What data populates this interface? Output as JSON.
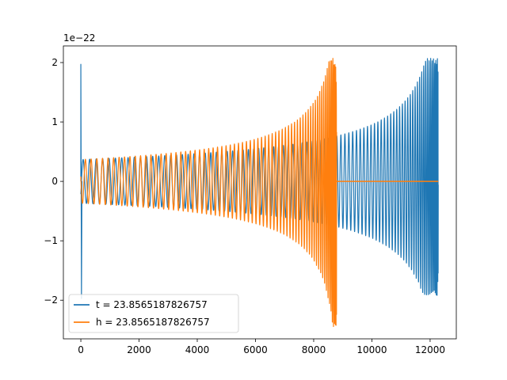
{
  "chart_data": {
    "type": "line",
    "title": "",
    "xlabel": "",
    "ylabel": "",
    "y_offset_label": "1e−22",
    "xlim": [
      -600,
      12900
    ],
    "ylim": [
      -2.65,
      2.28
    ],
    "x_ticks": [
      0,
      2000,
      4000,
      6000,
      8000,
      10000,
      12000
    ],
    "x_tick_labels": [
      "0",
      "2000",
      "4000",
      "6000",
      "8000",
      "10000",
      "12000"
    ],
    "y_ticks": [
      -2,
      -1,
      0,
      1,
      2
    ],
    "y_tick_labels": [
      "−2",
      "−1",
      "0",
      "1",
      "2"
    ],
    "grid": false,
    "legend_position": "lower-left",
    "series": [
      {
        "name": "t = 23.8565187826757",
        "color": "#1f77b4",
        "description": "oscillating chirp signal",
        "x_start": 0,
        "x_end": 12280,
        "initial_spike": [
          1.97,
          -1.97
        ],
        "base_amplitude": 0.4,
        "peak_amplitude": [
          2.07,
          -1.92
        ],
        "peak_x": 12280
      },
      {
        "name": "h = 23.8565187826757",
        "color": "#ff7f0e",
        "description": "oscillating chirp signal, zero after merger",
        "x_start": 0,
        "x_end": 8790,
        "zero_until": 12280,
        "base_amplitude": 0.4,
        "peak_amplitude": [
          2.07,
          -2.45
        ],
        "peak_x": 8790
      }
    ]
  }
}
